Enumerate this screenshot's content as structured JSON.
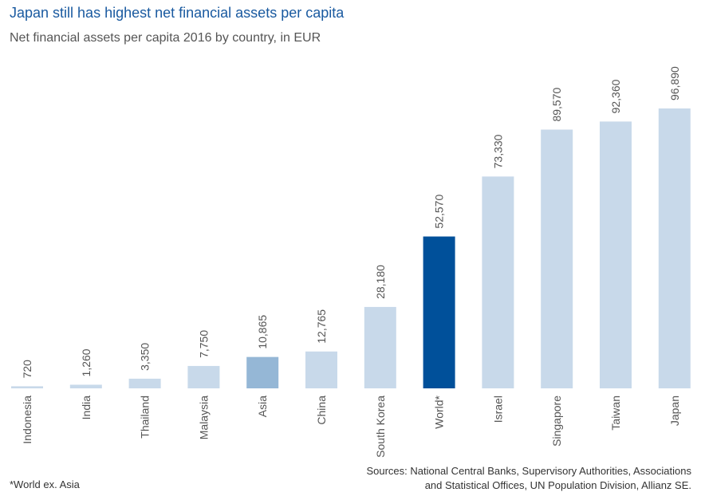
{
  "header": {
    "title": "Japan still has highest net financial assets per capita",
    "subtitle": "Net financial assets per capita 2016 by country, in EUR"
  },
  "footer": {
    "footnote": "*World ex. Asia",
    "sources": "Sources: National Central Banks, Supervisory Authorities, Associations and Statistical Offices, UN Population Division, Allianz SE."
  },
  "colors": {
    "default_bar": "#c8d9ea",
    "asia_bar": "#95b7d6",
    "world_bar": "#00509a",
    "value_label": "#555555",
    "category_label": "#555555"
  },
  "chart_data": {
    "type": "bar",
    "title": "Japan still has highest net financial assets per capita",
    "subtitle": "Net financial assets per capita 2016 by country, in EUR",
    "categories": [
      "Indonesia",
      "India",
      "Thailand",
      "Malaysia",
      "Asia",
      "China",
      "South Korea",
      "World*",
      "Israel",
      "Singapore",
      "Taiwan",
      "Japan"
    ],
    "values": [
      720,
      1260,
      3350,
      7750,
      10865,
      12765,
      28180,
      52570,
      73330,
      89570,
      92360,
      96890
    ],
    "value_labels": [
      "720",
      "1,260",
      "3,350",
      "7,750",
      "10,865",
      "12,765",
      "28,180",
      "52,570",
      "73,330",
      "89,570",
      "92,360",
      "96,890"
    ],
    "highlight": {
      "Asia": "asia_bar",
      "World*": "world_bar"
    },
    "ylim": [
      0,
      96890
    ],
    "grid": false,
    "legend": "none"
  }
}
